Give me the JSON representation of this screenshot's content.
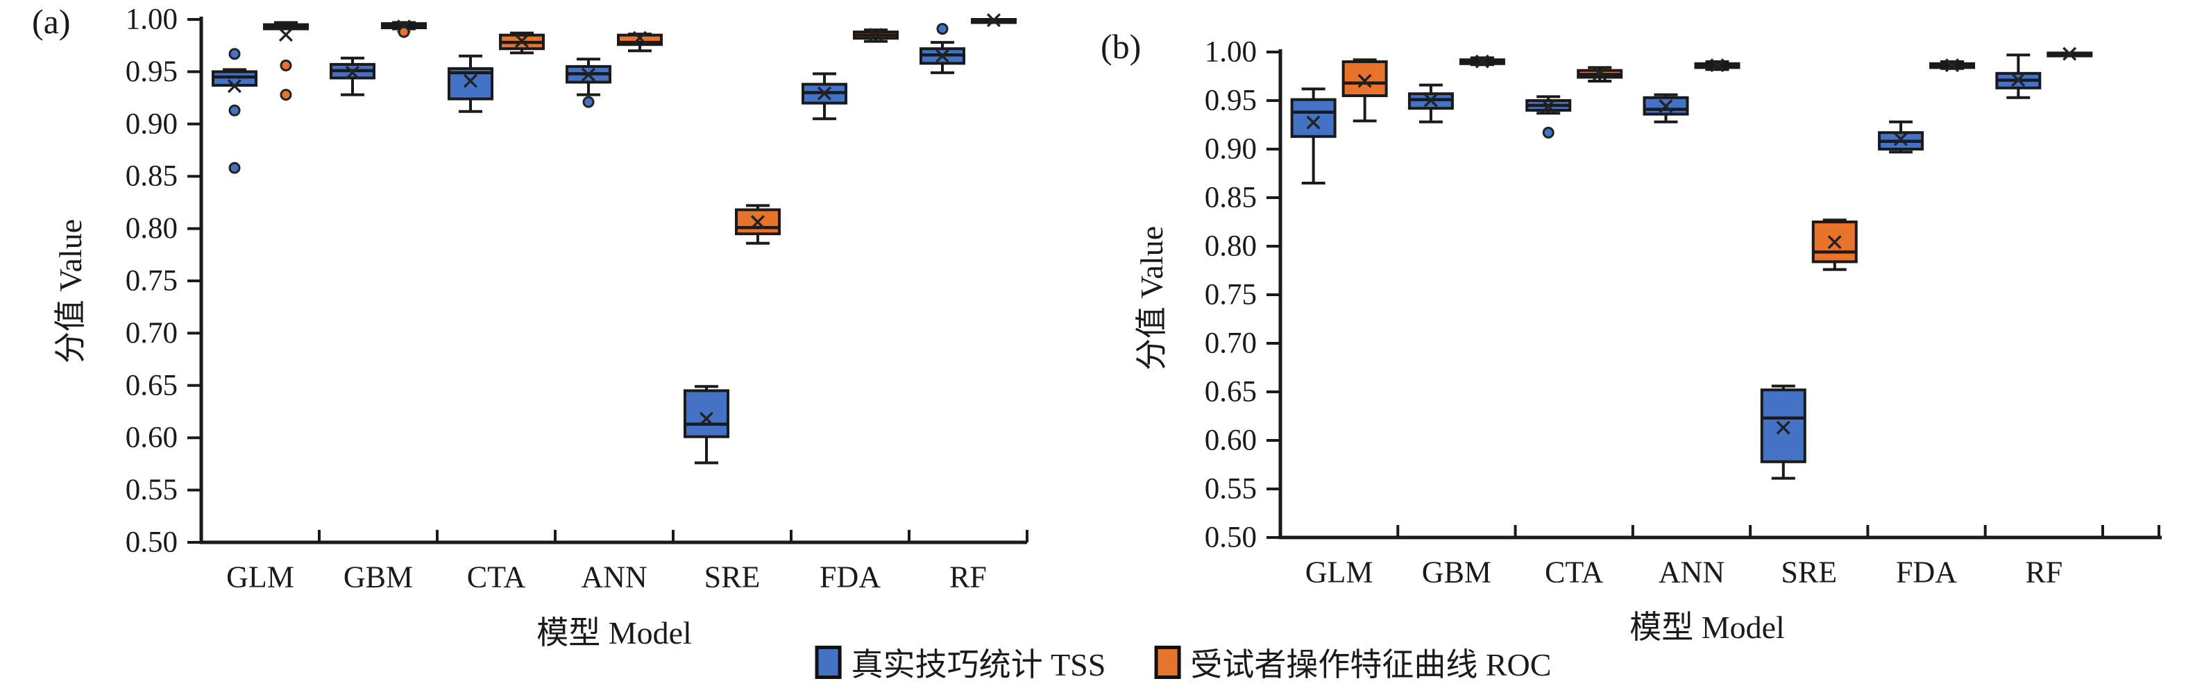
{
  "figure": {
    "colors": {
      "tss": "#4472C4",
      "roc": "#E8732A",
      "stroke": "#1A1A1A",
      "marker": "#222222"
    },
    "legend": [
      {
        "series": "tss",
        "label": "真实技巧统计 TSS"
      },
      {
        "series": "roc",
        "label": "受试者操作特征曲线 ROC"
      }
    ],
    "legend_position": "bottom-center"
  },
  "chart_data": [
    {
      "type": "boxplot",
      "panel": "(a)",
      "xlabel": "模型 Model",
      "ylabel": "分值 Value",
      "ylim": [
        0.5,
        1.0
      ],
      "ytick_step": 0.05,
      "grid": false,
      "categories": [
        "GLM",
        "GBM",
        "CTA",
        "ANN",
        "SRE",
        "FDA",
        "RF"
      ],
      "series": [
        {
          "name": "真实技巧统计 TSS",
          "abbr": "TSS",
          "color_key": "tss",
          "boxes": [
            {
              "q1": 0.937,
              "median": 0.945,
              "q3": 0.95,
              "mean": 0.936,
              "whisker_low": 0.937,
              "whisker_high": 0.952,
              "outliers": [
                0.967,
                0.913,
                0.858
              ]
            },
            {
              "q1": 0.944,
              "median": 0.951,
              "q3": 0.957,
              "mean": 0.949,
              "whisker_low": 0.928,
              "whisker_high": 0.963,
              "outliers": []
            },
            {
              "q1": 0.924,
              "median": 0.949,
              "q3": 0.953,
              "mean": 0.941,
              "whisker_low": 0.912,
              "whisker_high": 0.965,
              "outliers": []
            },
            {
              "q1": 0.94,
              "median": 0.948,
              "q3": 0.955,
              "mean": 0.947,
              "whisker_low": 0.928,
              "whisker_high": 0.962,
              "outliers": [
                0.921
              ]
            },
            {
              "q1": 0.601,
              "median": 0.613,
              "q3": 0.645,
              "mean": 0.618,
              "whisker_low": 0.576,
              "whisker_high": 0.649,
              "outliers": []
            },
            {
              "q1": 0.92,
              "median": 0.93,
              "q3": 0.938,
              "mean": 0.929,
              "whisker_low": 0.905,
              "whisker_high": 0.948,
              "outliers": []
            },
            {
              "q1": 0.958,
              "median": 0.966,
              "q3": 0.972,
              "mean": 0.965,
              "whisker_low": 0.949,
              "whisker_high": 0.978,
              "outliers": [
                0.991
              ]
            }
          ]
        },
        {
          "name": "受试者操作特征曲线 ROC",
          "abbr": "ROC",
          "color_key": "roc",
          "boxes": [
            {
              "q1": 0.991,
              "median": 0.993,
              "q3": 0.995,
              "mean": 0.985,
              "whisker_low": 0.991,
              "whisker_high": 0.997,
              "outliers": [
                0.956,
                0.928
              ]
            },
            {
              "q1": 0.992,
              "median": 0.994,
              "q3": 0.996,
              "mean": 0.993,
              "whisker_low": 0.991,
              "whisker_high": 0.997,
              "outliers": [
                0.988
              ]
            },
            {
              "q1": 0.972,
              "median": 0.978,
              "q3": 0.985,
              "mean": 0.979,
              "whisker_low": 0.968,
              "whisker_high": 0.987,
              "outliers": []
            },
            {
              "q1": 0.976,
              "median": 0.978,
              "q3": 0.985,
              "mean": 0.982,
              "whisker_low": 0.97,
              "whisker_high": 0.986,
              "outliers": []
            },
            {
              "q1": 0.795,
              "median": 0.801,
              "q3": 0.818,
              "mean": 0.806,
              "whisker_low": 0.786,
              "whisker_high": 0.822,
              "outliers": []
            },
            {
              "q1": 0.982,
              "median": 0.985,
              "q3": 0.988,
              "mean": 0.985,
              "whisker_low": 0.979,
              "whisker_high": 0.99,
              "outliers": []
            },
            {
              "q1": 0.997,
              "median": 0.999,
              "q3": 1.0,
              "mean": 0.999,
              "whisker_low": 0.997,
              "whisker_high": 1.0,
              "outliers": []
            }
          ]
        }
      ]
    },
    {
      "type": "boxplot",
      "panel": "(b)",
      "xlabel": "模型 Model",
      "ylabel": "分值 Value",
      "ylim": [
        0.5,
        1.0
      ],
      "ytick_step": 0.05,
      "grid": false,
      "categories": [
        "GLM",
        "GBM",
        "CTA",
        "ANN",
        "SRE",
        "FDA",
        "RF"
      ],
      "series": [
        {
          "name": "真实技巧统计 TSS",
          "abbr": "TSS",
          "color_key": "tss",
          "boxes": [
            {
              "q1": 0.913,
              "median": 0.938,
              "q3": 0.951,
              "mean": 0.927,
              "whisker_low": 0.865,
              "whisker_high": 0.962,
              "outliers": []
            },
            {
              "q1": 0.942,
              "median": 0.951,
              "q3": 0.957,
              "mean": 0.95,
              "whisker_low": 0.928,
              "whisker_high": 0.966,
              "outliers": []
            },
            {
              "q1": 0.94,
              "median": 0.945,
              "q3": 0.95,
              "mean": 0.944,
              "whisker_low": 0.937,
              "whisker_high": 0.954,
              "outliers": [
                0.917
              ]
            },
            {
              "q1": 0.936,
              "median": 0.941,
              "q3": 0.953,
              "mean": 0.944,
              "whisker_low": 0.928,
              "whisker_high": 0.956,
              "outliers": []
            },
            {
              "q1": 0.578,
              "median": 0.623,
              "q3": 0.652,
              "mean": 0.613,
              "whisker_low": 0.561,
              "whisker_high": 0.656,
              "outliers": []
            },
            {
              "q1": 0.9,
              "median": 0.908,
              "q3": 0.917,
              "mean": 0.91,
              "whisker_low": 0.897,
              "whisker_high": 0.928,
              "outliers": []
            },
            {
              "q1": 0.963,
              "median": 0.971,
              "q3": 0.978,
              "mean": 0.971,
              "whisker_low": 0.953,
              "whisker_high": 0.997,
              "outliers": []
            }
          ]
        },
        {
          "name": "受试者操作特征曲线 ROC",
          "abbr": "ROC",
          "color_key": "roc",
          "boxes": [
            {
              "q1": 0.955,
              "median": 0.968,
              "q3": 0.99,
              "mean": 0.97,
              "whisker_low": 0.929,
              "whisker_high": 0.992,
              "outliers": []
            },
            {
              "q1": 0.988,
              "median": 0.99,
              "q3": 0.992,
              "mean": 0.99,
              "whisker_low": 0.987,
              "whisker_high": 0.994,
              "outliers": []
            },
            {
              "q1": 0.974,
              "median": 0.977,
              "q3": 0.981,
              "mean": 0.977,
              "whisker_low": 0.97,
              "whisker_high": 0.984,
              "outliers": []
            },
            {
              "q1": 0.984,
              "median": 0.986,
              "q3": 0.988,
              "mean": 0.986,
              "whisker_low": 0.982,
              "whisker_high": 0.99,
              "outliers": []
            },
            {
              "q1": 0.784,
              "median": 0.794,
              "q3": 0.825,
              "mean": 0.804,
              "whisker_low": 0.776,
              "whisker_high": 0.827,
              "outliers": []
            },
            {
              "q1": 0.984,
              "median": 0.986,
              "q3": 0.988,
              "mean": 0.986,
              "whisker_low": 0.983,
              "whisker_high": 0.99,
              "outliers": []
            },
            {
              "q1": 0.996,
              "median": 0.998,
              "q3": 0.999,
              "mean": 0.998,
              "whisker_low": 0.996,
              "whisker_high": 0.999,
              "outliers": []
            }
          ]
        }
      ]
    }
  ]
}
